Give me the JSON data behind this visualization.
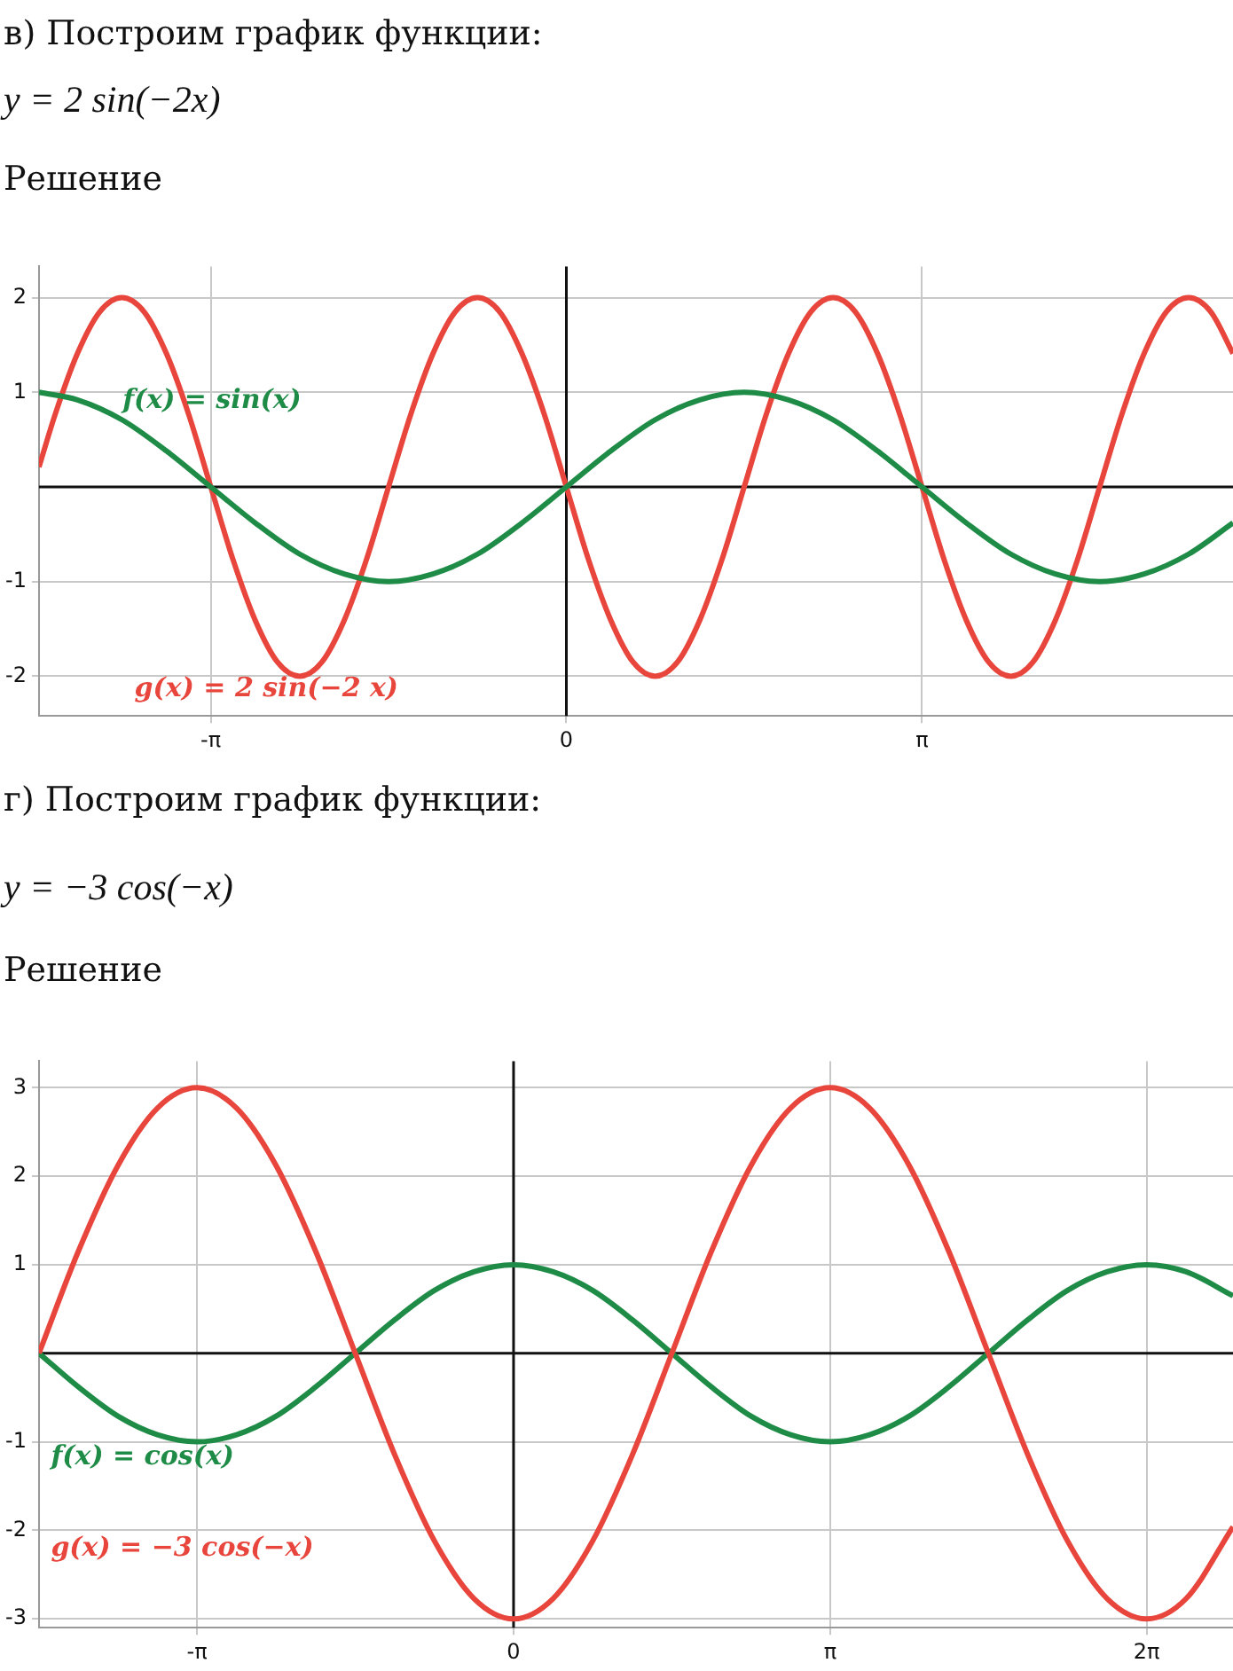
{
  "chart_data": [
    {
      "type": "line",
      "title": "в) Построим график функции:",
      "subtitle": "y = 2 sin(−2x)",
      "annotations": [
        "Решение"
      ],
      "xlim": [
        -4.66,
        5.89
      ],
      "ylim": [
        -2.42,
        2.33
      ],
      "xticks": [
        {
          "value": -3.142,
          "label": "-π"
        },
        0,
        {
          "value": 3.142,
          "label": "π"
        }
      ],
      "yticks": [
        -2,
        -1,
        1,
        2
      ],
      "grid": true,
      "legend": false,
      "marker": "none",
      "series": [
        {
          "name": "f(x) = sin(x)",
          "color": "#1e8c46",
          "x": [
            -4.66,
            -4.32,
            -3.927,
            -3.534,
            -3.142,
            -2.749,
            -2.356,
            -1.963,
            -1.571,
            -1.178,
            -0.785,
            -0.393,
            0,
            0.393,
            0.785,
            1.178,
            1.571,
            1.963,
            2.356,
            2.749,
            3.142,
            3.534,
            3.927,
            4.32,
            4.712,
            5.105,
            5.498,
            5.89
          ],
          "values": [
            1,
            0.92,
            0.71,
            0.38,
            0,
            -0.38,
            -0.71,
            -0.92,
            -1,
            -0.92,
            -0.71,
            -0.38,
            0,
            0.38,
            0.71,
            0.92,
            1,
            0.92,
            0.71,
            0.38,
            0,
            -0.38,
            -0.71,
            -0.92,
            -1,
            -0.92,
            -0.71,
            -0.38
          ]
        },
        {
          "name": "g(x) = 2 sin(−2 x)",
          "color": "#e8453c",
          "x": [
            -4.66,
            -4.516,
            -4.32,
            -4.123,
            -3.927,
            -3.731,
            -3.534,
            -3.338,
            -3.142,
            -2.945,
            -2.749,
            -2.553,
            -2.356,
            -2.16,
            -1.963,
            -1.767,
            -1.571,
            -1.374,
            -1.178,
            -0.982,
            -0.785,
            -0.589,
            -0.393,
            -0.196,
            0,
            0.196,
            0.393,
            0.589,
            0.785,
            0.982,
            1.178,
            1.374,
            1.571,
            1.767,
            1.963,
            2.16,
            2.356,
            2.553,
            2.749,
            2.945,
            3.142,
            3.338,
            3.534,
            3.731,
            3.927,
            4.123,
            4.32,
            4.516,
            4.712,
            4.909,
            5.105,
            5.301,
            5.498,
            5.694,
            5.89
          ],
          "values": [
            0.21,
            0.77,
            1.41,
            1.85,
            2,
            1.85,
            1.41,
            0.77,
            0,
            -0.77,
            -1.41,
            -1.85,
            -2,
            -1.85,
            -1.41,
            -0.77,
            0,
            0.77,
            1.41,
            1.85,
            2,
            1.85,
            1.41,
            0.77,
            0,
            -0.77,
            -1.41,
            -1.85,
            -2,
            -1.85,
            -1.41,
            -0.77,
            0,
            0.77,
            1.41,
            1.85,
            2,
            1.85,
            1.41,
            0.77,
            0,
            -0.77,
            -1.41,
            -1.85,
            -2,
            -1.85,
            -1.41,
            -0.77,
            0,
            0.77,
            1.41,
            1.85,
            2,
            1.85,
            1.41
          ]
        }
      ]
    },
    {
      "type": "line",
      "title": "г) Построим график функции:",
      "subtitle": "y = −3 cos(−x)",
      "annotations": [
        "Решение"
      ],
      "xlim": [
        -4.71,
        7.14
      ],
      "ylim": [
        -3.1,
        3.3
      ],
      "xticks": [
        {
          "value": -3.142,
          "label": "-π"
        },
        0,
        {
          "value": 3.142,
          "label": "π"
        },
        {
          "value": 6.283,
          "label": "2π"
        }
      ],
      "yticks": [
        -3,
        -2,
        -1,
        1,
        2,
        3
      ],
      "grid": true,
      "legend": false,
      "marker": "none",
      "series": [
        {
          "name": "g(x) = −3 cos(−x)",
          "color": "#e8453c",
          "x": [
            -4.71,
            -4.32,
            -3.927,
            -3.534,
            -3.142,
            -2.749,
            -2.356,
            -1.963,
            -1.571,
            -1.178,
            -0.785,
            -0.393,
            0,
            0.393,
            0.785,
            1.178,
            1.571,
            1.963,
            2.356,
            2.749,
            3.142,
            3.534,
            3.927,
            4.32,
            4.712,
            5.105,
            5.498,
            5.89,
            6.283,
            6.676,
            7.14
          ],
          "values": [
            0,
            1.15,
            2.12,
            2.77,
            3,
            2.77,
            2.12,
            1.15,
            0,
            -1.15,
            -2.12,
            -2.77,
            -3,
            -2.77,
            -2.12,
            -1.15,
            0,
            1.15,
            2.12,
            2.77,
            3,
            2.77,
            2.12,
            1.15,
            0,
            -1.15,
            -2.12,
            -2.77,
            -3,
            -2.77,
            -1.96
          ]
        },
        {
          "name": "f(x) = cos(x)",
          "color": "#1e8c46",
          "x": [
            -4.71,
            -4.32,
            -3.927,
            -3.534,
            -3.142,
            -2.749,
            -2.356,
            -1.963,
            -1.571,
            -1.178,
            -0.785,
            -0.393,
            0,
            0.393,
            0.785,
            1.178,
            1.571,
            1.963,
            2.356,
            2.749,
            3.142,
            3.534,
            3.927,
            4.32,
            4.712,
            5.105,
            5.498,
            5.89,
            6.283,
            6.676,
            7.14
          ],
          "values": [
            0,
            -0.38,
            -0.71,
            -0.92,
            -1,
            -0.92,
            -0.71,
            -0.38,
            0,
            0.38,
            0.71,
            0.92,
            1,
            0.92,
            0.71,
            0.38,
            0,
            -0.38,
            -0.71,
            -0.92,
            -1,
            -0.92,
            -0.71,
            -0.38,
            0,
            0.38,
            0.71,
            0.92,
            1,
            0.92,
            0.65
          ]
        }
      ]
    }
  ]
}
